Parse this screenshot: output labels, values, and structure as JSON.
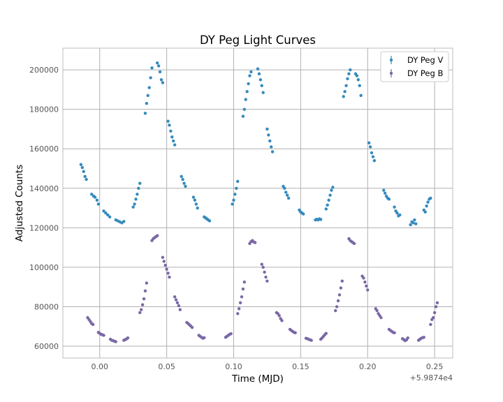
{
  "chart_data": {
    "type": "scatter",
    "title": "DY Peg Light Curves",
    "xlabel": "Time (MJD)",
    "ylabel": "Adjusted Counts",
    "x_offset_label": "+5.9874e4",
    "xlim": [
      -0.0275,
      0.2635
    ],
    "ylim": [
      54000,
      211000
    ],
    "x_ticks": [
      0.0,
      0.05,
      0.1,
      0.15,
      0.2,
      0.25
    ],
    "x_tick_labels": [
      "0.00",
      "0.05",
      "0.10",
      "0.15",
      "0.20",
      "0.25"
    ],
    "y_ticks": [
      60000,
      80000,
      100000,
      120000,
      140000,
      160000,
      180000,
      200000
    ],
    "y_tick_labels": [
      "60000",
      "80000",
      "100000",
      "120000",
      "140000",
      "160000",
      "180000",
      "200000"
    ],
    "grid": true,
    "legend_position": "top-right",
    "series": [
      {
        "name": "DY Peg V",
        "color": "#348ABD",
        "points": [
          [
            -0.014,
            152000
          ],
          [
            -0.013,
            150500
          ],
          [
            -0.012,
            148500
          ],
          [
            -0.011,
            146000
          ],
          [
            -0.01,
            144500
          ],
          [
            -0.006,
            137000
          ],
          [
            -0.0045,
            136000
          ],
          [
            -0.0035,
            135500
          ],
          [
            -0.002,
            134000
          ],
          [
            -0.001,
            132000
          ],
          [
            0.003,
            128500
          ],
          [
            0.0045,
            127500
          ],
          [
            0.006,
            126500
          ],
          [
            0.0075,
            125500
          ],
          [
            0.012,
            124000
          ],
          [
            0.0135,
            123500
          ],
          [
            0.015,
            123000
          ],
          [
            0.0165,
            122500
          ],
          [
            0.018,
            123200
          ],
          [
            0.025,
            130500
          ],
          [
            0.026,
            132000
          ],
          [
            0.027,
            134500
          ],
          [
            0.028,
            137000
          ],
          [
            0.029,
            140000
          ],
          [
            0.03,
            142500
          ],
          [
            0.034,
            178000
          ],
          [
            0.035,
            183000
          ],
          [
            0.036,
            187000
          ],
          [
            0.037,
            191000
          ],
          [
            0.038,
            196000
          ],
          [
            0.039,
            201000
          ],
          [
            0.043,
            203500
          ],
          [
            0.044,
            202000
          ],
          [
            0.045,
            199000
          ],
          [
            0.046,
            195000
          ],
          [
            0.047,
            193500
          ],
          [
            0.051,
            174000
          ],
          [
            0.052,
            172000
          ],
          [
            0.053,
            169000
          ],
          [
            0.054,
            166000
          ],
          [
            0.055,
            164000
          ],
          [
            0.056,
            162000
          ],
          [
            0.061,
            146000
          ],
          [
            0.062,
            144500
          ],
          [
            0.063,
            142500
          ],
          [
            0.064,
            141000
          ],
          [
            0.07,
            135500
          ],
          [
            0.071,
            134000
          ],
          [
            0.072,
            132000
          ],
          [
            0.073,
            130000
          ],
          [
            0.078,
            125500
          ],
          [
            0.079,
            125000
          ],
          [
            0.08,
            124500
          ],
          [
            0.081,
            124000
          ],
          [
            0.082,
            123500
          ],
          [
            0.099,
            132000
          ],
          [
            0.1,
            134000
          ],
          [
            0.101,
            137000
          ],
          [
            0.102,
            140000
          ],
          [
            0.103,
            143500
          ],
          [
            0.107,
            176500
          ],
          [
            0.108,
            180000
          ],
          [
            0.109,
            185000
          ],
          [
            0.11,
            189000
          ],
          [
            0.111,
            193000
          ],
          [
            0.112,
            197000
          ],
          [
            0.113,
            199000
          ],
          [
            0.118,
            200500
          ],
          [
            0.119,
            198000
          ],
          [
            0.12,
            195000
          ],
          [
            0.121,
            192000
          ],
          [
            0.122,
            188500
          ],
          [
            0.125,
            170000
          ],
          [
            0.126,
            167000
          ],
          [
            0.127,
            164000
          ],
          [
            0.128,
            161000
          ],
          [
            0.129,
            158500
          ],
          [
            0.137,
            141000
          ],
          [
            0.138,
            140000
          ],
          [
            0.139,
            138000
          ],
          [
            0.14,
            136500
          ],
          [
            0.141,
            135000
          ],
          [
            0.149,
            129000
          ],
          [
            0.15,
            128000
          ],
          [
            0.151,
            127500
          ],
          [
            0.152,
            127000
          ],
          [
            0.161,
            124000
          ],
          [
            0.162,
            124300
          ],
          [
            0.163,
            124000
          ],
          [
            0.164,
            124500
          ],
          [
            0.165,
            124200
          ],
          [
            0.169,
            129500
          ],
          [
            0.17,
            131500
          ],
          [
            0.171,
            134000
          ],
          [
            0.172,
            136500
          ],
          [
            0.173,
            139000
          ],
          [
            0.174,
            140500
          ],
          [
            0.182,
            186500
          ],
          [
            0.183,
            189000
          ],
          [
            0.184,
            192000
          ],
          [
            0.185,
            195500
          ],
          [
            0.186,
            198000
          ],
          [
            0.187,
            200000
          ],
          [
            0.191,
            198000
          ],
          [
            0.192,
            197000
          ],
          [
            0.193,
            195000
          ],
          [
            0.194,
            192000
          ],
          [
            0.195,
            187000
          ],
          [
            0.201,
            163000
          ],
          [
            0.202,
            161000
          ],
          [
            0.203,
            158000
          ],
          [
            0.204,
            156000
          ],
          [
            0.205,
            154000
          ],
          [
            0.212,
            139000
          ],
          [
            0.213,
            137500
          ],
          [
            0.214,
            136000
          ],
          [
            0.215,
            135000
          ],
          [
            0.216,
            134500
          ],
          [
            0.22,
            130500
          ],
          [
            0.221,
            128500
          ],
          [
            0.222,
            127500
          ],
          [
            0.223,
            126000
          ],
          [
            0.224,
            126500
          ],
          [
            0.232,
            121500
          ],
          [
            0.233,
            123000
          ],
          [
            0.234,
            122500
          ],
          [
            0.235,
            124000
          ],
          [
            0.236,
            122000
          ],
          [
            0.242,
            129000
          ],
          [
            0.243,
            128000
          ],
          [
            0.244,
            131000
          ],
          [
            0.245,
            133000
          ],
          [
            0.246,
            134500
          ],
          [
            0.247,
            135000
          ]
        ]
      },
      {
        "name": "DY Peg B",
        "color": "#7A68A6",
        "points": [
          [
            -0.009,
            74500
          ],
          [
            -0.008,
            73500
          ],
          [
            -0.007,
            72500
          ],
          [
            -0.006,
            71500
          ],
          [
            -0.005,
            71000
          ],
          [
            -0.001,
            67000
          ],
          [
            0.0,
            66500
          ],
          [
            0.001,
            66000
          ],
          [
            0.002,
            65800
          ],
          [
            0.003,
            65500
          ],
          [
            0.008,
            63500
          ],
          [
            0.009,
            63000
          ],
          [
            0.01,
            62800
          ],
          [
            0.011,
            62500
          ],
          [
            0.012,
            62300
          ],
          [
            0.018,
            63000
          ],
          [
            0.019,
            63300
          ],
          [
            0.02,
            63700
          ],
          [
            0.021,
            64200
          ],
          [
            0.03,
            77000
          ],
          [
            0.031,
            78500
          ],
          [
            0.032,
            81000
          ],
          [
            0.033,
            84000
          ],
          [
            0.034,
            88000
          ],
          [
            0.035,
            92000
          ],
          [
            0.039,
            113500
          ],
          [
            0.04,
            114500
          ],
          [
            0.041,
            115000
          ],
          [
            0.042,
            115500
          ],
          [
            0.043,
            116000
          ],
          [
            0.047,
            105000
          ],
          [
            0.048,
            103000
          ],
          [
            0.049,
            101000
          ],
          [
            0.05,
            99000
          ],
          [
            0.051,
            97000
          ],
          [
            0.052,
            95000
          ],
          [
            0.056,
            85000
          ],
          [
            0.057,
            83500
          ],
          [
            0.058,
            82000
          ],
          [
            0.059,
            80500
          ],
          [
            0.06,
            78500
          ],
          [
            0.065,
            72000
          ],
          [
            0.066,
            71500
          ],
          [
            0.067,
            70800
          ],
          [
            0.068,
            70200
          ],
          [
            0.069,
            69500
          ],
          [
            0.074,
            65500
          ],
          [
            0.075,
            65000
          ],
          [
            0.076,
            64500
          ],
          [
            0.077,
            64000
          ],
          [
            0.078,
            64300
          ],
          [
            0.094,
            64500
          ],
          [
            0.095,
            65000
          ],
          [
            0.096,
            65500
          ],
          [
            0.097,
            66000
          ],
          [
            0.098,
            66300
          ],
          [
            0.103,
            76500
          ],
          [
            0.104,
            79000
          ],
          [
            0.105,
            82000
          ],
          [
            0.106,
            85000
          ],
          [
            0.107,
            89000
          ],
          [
            0.108,
            92500
          ],
          [
            0.112,
            112000
          ],
          [
            0.113,
            113000
          ],
          [
            0.114,
            113500
          ],
          [
            0.115,
            112800
          ],
          [
            0.116,
            112500
          ],
          [
            0.121,
            101500
          ],
          [
            0.122,
            100000
          ],
          [
            0.123,
            97500
          ],
          [
            0.124,
            95000
          ],
          [
            0.125,
            93000
          ],
          [
            0.132,
            77000
          ],
          [
            0.133,
            76500
          ],
          [
            0.134,
            75500
          ],
          [
            0.135,
            74000
          ],
          [
            0.136,
            73000
          ],
          [
            0.142,
            68500
          ],
          [
            0.143,
            68000
          ],
          [
            0.144,
            67500
          ],
          [
            0.145,
            67000
          ],
          [
            0.146,
            66800
          ],
          [
            0.154,
            64000
          ],
          [
            0.155,
            63800
          ],
          [
            0.156,
            63500
          ],
          [
            0.157,
            63200
          ],
          [
            0.158,
            63000
          ],
          [
            0.165,
            63500
          ],
          [
            0.166,
            64200
          ],
          [
            0.167,
            65000
          ],
          [
            0.168,
            65800
          ],
          [
            0.169,
            66500
          ],
          [
            0.176,
            78000
          ],
          [
            0.177,
            80000
          ],
          [
            0.178,
            83000
          ],
          [
            0.179,
            86000
          ],
          [
            0.18,
            89500
          ],
          [
            0.181,
            93000
          ],
          [
            0.186,
            114500
          ],
          [
            0.187,
            113500
          ],
          [
            0.188,
            113000
          ],
          [
            0.189,
            112500
          ],
          [
            0.19,
            112000
          ],
          [
            0.196,
            95500
          ],
          [
            0.197,
            94500
          ],
          [
            0.198,
            92500
          ],
          [
            0.199,
            90500
          ],
          [
            0.2,
            88500
          ],
          [
            0.206,
            79000
          ],
          [
            0.207,
            78000
          ],
          [
            0.208,
            76500
          ],
          [
            0.209,
            75500
          ],
          [
            0.21,
            74500
          ],
          [
            0.216,
            68500
          ],
          [
            0.217,
            68000
          ],
          [
            0.218,
            67500
          ],
          [
            0.219,
            67000
          ],
          [
            0.22,
            66800
          ],
          [
            0.226,
            63800
          ],
          [
            0.227,
            63300
          ],
          [
            0.228,
            62800
          ],
          [
            0.229,
            63200
          ],
          [
            0.23,
            64200
          ],
          [
            0.238,
            63000
          ],
          [
            0.239,
            63500
          ],
          [
            0.24,
            64000
          ],
          [
            0.241,
            64300
          ],
          [
            0.242,
            64500
          ],
          [
            0.247,
            71000
          ],
          [
            0.248,
            73500
          ],
          [
            0.249,
            74500
          ],
          [
            0.25,
            77000
          ],
          [
            0.251,
            80000
          ],
          [
            0.252,
            82000
          ]
        ]
      }
    ]
  }
}
